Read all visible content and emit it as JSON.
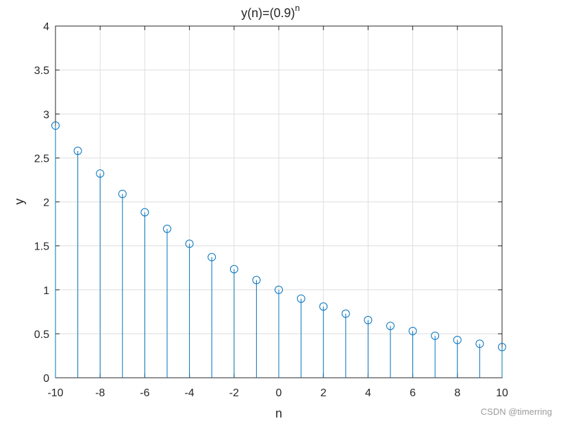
{
  "chart_data": {
    "type": "stem",
    "title": {
      "base": "y(n)=(0.9)",
      "superscript": "n"
    },
    "xlabel": "n",
    "ylabel": "y",
    "xlim": [
      -10,
      10
    ],
    "ylim": [
      0,
      4
    ],
    "xticks": [
      -10,
      -8,
      -6,
      -4,
      -2,
      0,
      2,
      4,
      6,
      8,
      10
    ],
    "yticks": [
      0,
      0.5,
      1,
      1.5,
      2,
      2.5,
      3,
      3.5,
      4
    ],
    "grid": true,
    "series": [
      {
        "x": [
          -10,
          -9,
          -8,
          -7,
          -6,
          -5,
          -4,
          -3,
          -2,
          -1,
          0,
          1,
          2,
          3,
          4,
          5,
          6,
          7,
          8,
          9,
          10
        ],
        "y": [
          2.868,
          2.581,
          2.323,
          2.091,
          1.882,
          1.694,
          1.524,
          1.372,
          1.235,
          1.111,
          1.0,
          0.9,
          0.81,
          0.729,
          0.656,
          0.59,
          0.531,
          0.478,
          0.43,
          0.387,
          0.349
        ],
        "color": "#0072BD",
        "marker": "open-circle"
      }
    ]
  },
  "watermark": "CSDN @timerring",
  "colors": {
    "stem": "#0072BD",
    "grid": "#dedede",
    "axis": "#262626"
  }
}
